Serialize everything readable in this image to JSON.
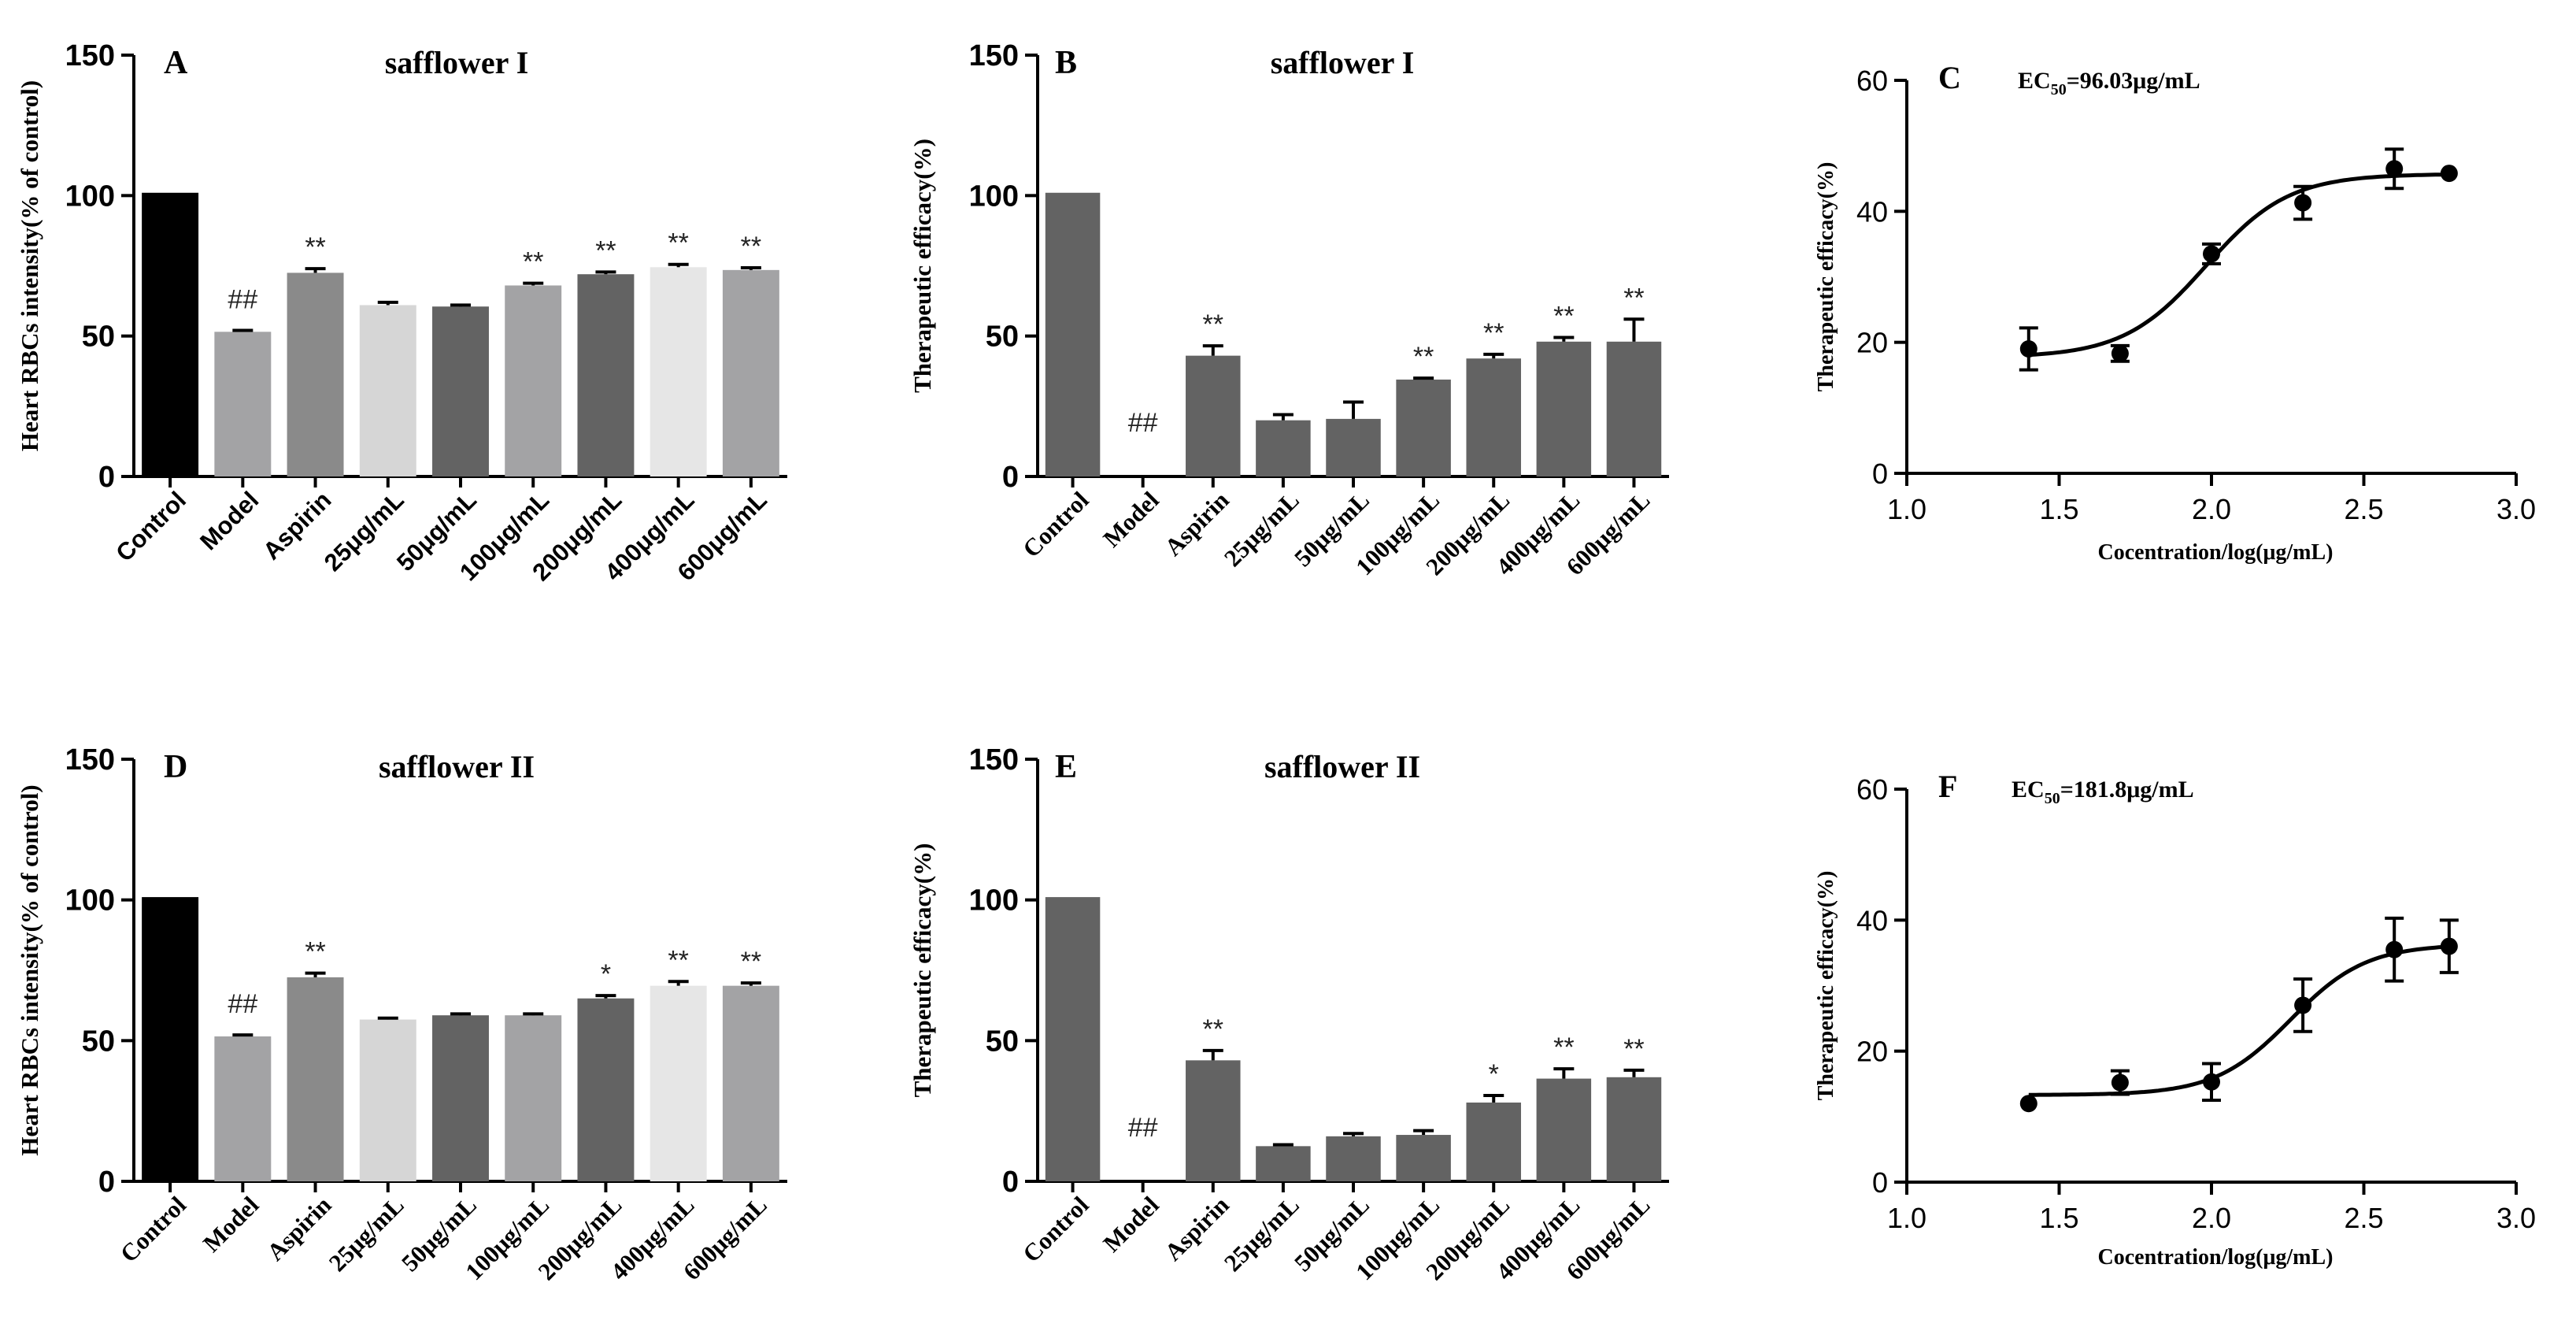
{
  "figure": "Effects of safflower I and safflower II on heart RBCs intensity and therapeutic efficacy",
  "colors": {
    "black": "#000000",
    "mid_gray": "#a3a3a5",
    "gray": "#8a8a8a",
    "light_gray": "#d6d6d6",
    "dark_gray": "#636363",
    "lightest_gray": "#e6e6e6",
    "bar_gray": "#636363"
  },
  "chart_data": [
    {
      "id": "A",
      "panel_letter": "A",
      "type": "bar",
      "title": "safflower I",
      "xlabel": "",
      "ylabel": "Heart RBCs intensity(% of control)",
      "ylim": [
        0,
        150
      ],
      "yticks": [
        0,
        50,
        100,
        150
      ],
      "categories": [
        "Control",
        "Model",
        "Aspirin",
        "25μg/mL",
        "50μg/mL",
        "100μg/mL",
        "200μg/mL",
        "400μg/mL",
        "600μg/mL"
      ],
      "values": [
        101,
        51.5,
        72.5,
        61,
        60.5,
        68,
        72,
        74.5,
        73.5
      ],
      "errors": [
        0,
        0.5,
        1.5,
        1,
        0.5,
        0.8,
        0.8,
        1,
        0.8
      ],
      "bar_colors": [
        "black",
        "mid_gray",
        "gray",
        "light_gray",
        "dark_gray",
        "mid_gray",
        "dark_gray",
        "lightest_gray",
        "mid_gray"
      ],
      "annotations": [
        "",
        "##",
        "**",
        "",
        "",
        "**",
        "**",
        "**",
        "**"
      ],
      "grid": false
    },
    {
      "id": "B",
      "panel_letter": "B",
      "type": "bar",
      "title": "safflower I",
      "xlabel": "",
      "ylabel": "Therapeutic efficacy(%)",
      "ylim": [
        0,
        150
      ],
      "yticks": [
        0,
        50,
        100,
        150
      ],
      "categories": [
        "Control",
        "Model",
        "Aspirin",
        "25μg/mL",
        "50μg/mL",
        "100μg/mL",
        "200μg/mL",
        "400μg/mL",
        "600μg/mL"
      ],
      "values": [
        101,
        0,
        43,
        20,
        20.5,
        34.5,
        42,
        48,
        48
      ],
      "errors": [
        0,
        0,
        3.5,
        2,
        6,
        0.5,
        1.5,
        1.5,
        8
      ],
      "bar_colors": [
        "bar_gray",
        "bar_gray",
        "bar_gray",
        "bar_gray",
        "bar_gray",
        "bar_gray",
        "bar_gray",
        "bar_gray",
        "bar_gray"
      ],
      "annotations": [
        "",
        "##",
        "**",
        "",
        "",
        "**",
        "**",
        "**",
        "**"
      ],
      "grid": false
    },
    {
      "id": "C",
      "panel_letter": "C",
      "type": "scatter",
      "title": "",
      "annotation_prefix": "EC",
      "annotation_sub": "50",
      "annotation_value": "=96.03μg/mL",
      "xlabel": "Cocentration/log(μg/mL)",
      "ylabel": "Therapeutic efficacy(%)",
      "xlim": [
        1.0,
        3.0
      ],
      "ylim": [
        0,
        60
      ],
      "xticks": [
        "1.0",
        "1.5",
        "2.0",
        "2.5",
        "3.0"
      ],
      "yticks": [
        "0",
        "20",
        "40",
        "60"
      ],
      "x": [
        1.4,
        1.7,
        2.0,
        2.3,
        2.6,
        2.78
      ],
      "y": [
        19,
        18.3,
        33.5,
        41.3,
        46.5,
        45.8
      ],
      "yerr": [
        3.2,
        1.2,
        1.5,
        2.5,
        3,
        0
      ],
      "fit": {
        "bottom": 17.7,
        "top": 45.7,
        "logEC50": 1.9824,
        "hill": 3.2
      },
      "grid": false
    },
    {
      "id": "D",
      "panel_letter": "D",
      "type": "bar",
      "title": "safflower II",
      "xlabel": "",
      "ylabel": "Heart RBCs intensity(% of control)",
      "ylim": [
        0,
        150
      ],
      "yticks": [
        0,
        50,
        100,
        150
      ],
      "categories": [
        "Control",
        "Model",
        "Aspirin",
        "25μg/mL",
        "50μg/mL",
        "100μg/mL",
        "200μg/mL",
        "400μg/mL",
        "600μg/mL"
      ],
      "values": [
        101,
        51.5,
        72.5,
        57.5,
        59,
        59,
        65,
        69.5,
        69.5
      ],
      "errors": [
        0,
        0.5,
        1.5,
        0.5,
        0.5,
        0.5,
        1,
        1.5,
        1
      ],
      "bar_colors": [
        "black",
        "mid_gray",
        "gray",
        "light_gray",
        "dark_gray",
        "mid_gray",
        "dark_gray",
        "lightest_gray",
        "mid_gray"
      ],
      "annotations": [
        "",
        "##",
        "**",
        "",
        "",
        "",
        "*",
        "**",
        "**"
      ],
      "grid": false
    },
    {
      "id": "E",
      "panel_letter": "E",
      "type": "bar",
      "title": "safflower II",
      "xlabel": "",
      "ylabel": "Therapeutic efficacy(%)",
      "ylim": [
        0,
        150
      ],
      "yticks": [
        0,
        50,
        100,
        150
      ],
      "categories": [
        "Control",
        "Model",
        "Aspirin",
        "25μg/mL",
        "50μg/mL",
        "100μg/mL",
        "200μg/mL",
        "400μg/mL",
        "600μg/mL"
      ],
      "values": [
        101,
        0,
        43,
        12.5,
        16,
        16.5,
        28,
        36.5,
        37
      ],
      "errors": [
        0,
        0,
        3.5,
        0.5,
        1,
        1.5,
        2.5,
        3.5,
        2.5
      ],
      "bar_colors": [
        "bar_gray",
        "bar_gray",
        "bar_gray",
        "bar_gray",
        "bar_gray",
        "bar_gray",
        "bar_gray",
        "bar_gray",
        "bar_gray"
      ],
      "annotations": [
        "",
        "##",
        "**",
        "",
        "",
        "",
        "*",
        "**",
        "**"
      ],
      "grid": false
    },
    {
      "id": "F",
      "panel_letter": "F",
      "type": "scatter",
      "title": "",
      "annotation_prefix": "EC",
      "annotation_sub": "50",
      "annotation_value": "=181.8μg/mL",
      "xlabel": "Cocentration/log(μg/mL)",
      "ylabel": "Therapeutic efficacy(%)",
      "xlim": [
        1.0,
        3.0
      ],
      "ylim": [
        0,
        60
      ],
      "xticks": [
        "1.0",
        "1.5",
        "2.0",
        "2.5",
        "3.0"
      ],
      "yticks": [
        "0",
        "20",
        "40",
        "60"
      ],
      "x": [
        1.4,
        1.7,
        2.0,
        2.3,
        2.6,
        2.78
      ],
      "y": [
        12,
        15.2,
        15.3,
        27,
        35.5,
        36
      ],
      "yerr": [
        0,
        1.8,
        2.8,
        4,
        4.8,
        4
      ],
      "fit": {
        "bottom": 13.3,
        "top": 36.3,
        "logEC50": 2.2596,
        "hill": 3.5
      },
      "grid": false
    }
  ]
}
